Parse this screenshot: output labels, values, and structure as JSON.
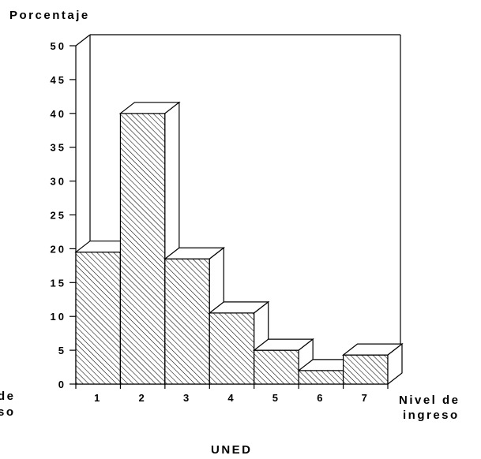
{
  "chart_data": {
    "type": "bar",
    "style": "3d-hatched",
    "ylabel": "Porcentaje",
    "xlabel_right": [
      "Nivel de",
      "ingreso"
    ],
    "xlabel_left_partial": [
      "de",
      "so"
    ],
    "bottom_label": "UNED",
    "categories": [
      "1",
      "2",
      "3",
      "4",
      "5",
      "6",
      "7"
    ],
    "values": [
      19.5,
      40,
      18.5,
      10.5,
      5,
      2,
      4.3
    ],
    "yticks": [
      "0",
      "5",
      "10",
      "15",
      "20",
      "25",
      "30",
      "35",
      "40",
      "45",
      "50"
    ],
    "ylim": [
      0,
      50
    ],
    "grid": false,
    "legend": "none"
  }
}
